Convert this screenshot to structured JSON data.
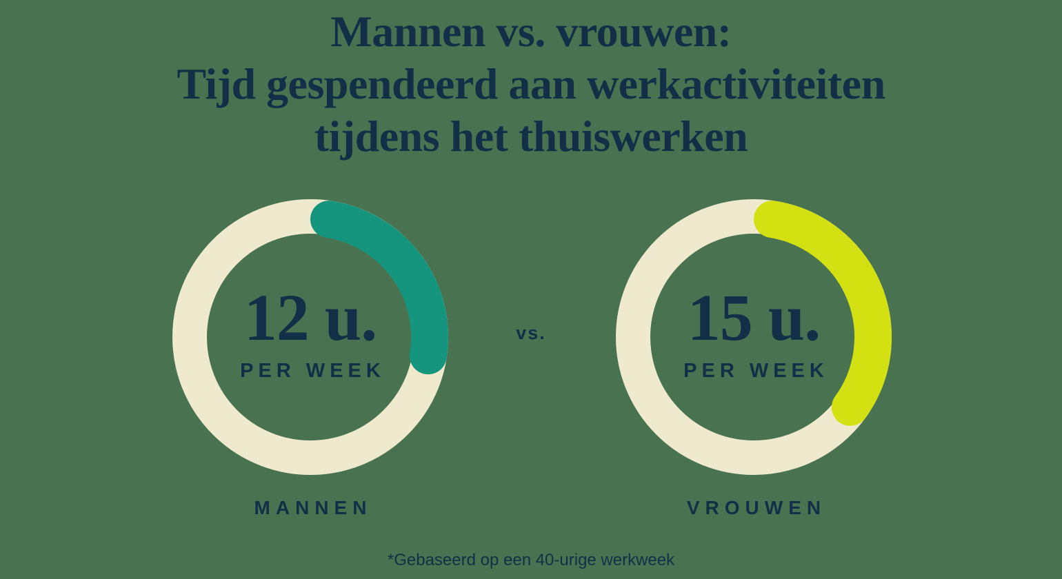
{
  "colors": {
    "background": "#497350",
    "text": "#132F47",
    "track": "#EFEACE",
    "arc_men": "#16957E",
    "arc_women": "#D3E112"
  },
  "title": {
    "lines": [
      "Mannen vs. vrouwen:",
      "Tijd gespendeerd aan werkactiviteiten",
      "tijdens het thuiswerken"
    ]
  },
  "comparison": {
    "vs_label": "vs."
  },
  "chart_data": {
    "type": "donut",
    "title": "Mannen vs. vrouwen: Tijd gespendeerd aan werkactiviteiten tijdens het thuiswerken",
    "unit": "u.",
    "total": 40,
    "annotation": "*Gebaseerd op een 40-urige werkweek",
    "legend_position": "below-each-donut",
    "charts": [
      {
        "label": "MANNEN",
        "value": 12,
        "total": 40,
        "display_value": "12 u.",
        "sublabel": "PER WEEK",
        "track_color": "#EFEACE",
        "arc_color": "#16957E"
      },
      {
        "label": "VROUWEN",
        "value": 15,
        "total": 40,
        "display_value": "15 u.",
        "sublabel": "PER WEEK",
        "track_color": "#EFEACE",
        "arc_color": "#D3E112"
      }
    ]
  }
}
